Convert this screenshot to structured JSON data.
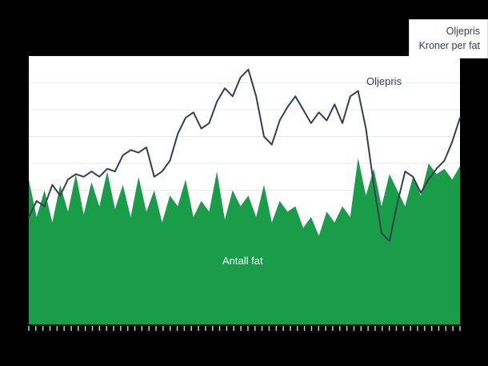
{
  "background_color": "#000000",
  "legend": {
    "title": "Oljepris",
    "subtitle": "Kroner per fat"
  },
  "annotations": {
    "line_label": "Oljepris",
    "area_label": "Antall fat"
  },
  "colors": {
    "plot_bg": "#ffffff",
    "grid": "#e9e9e9",
    "tick": "#c8c8c8",
    "line": "#33414e",
    "area": "#1a9d49"
  },
  "chart_data": {
    "type": "area",
    "title": "",
    "xlabel": "",
    "ylabel": "",
    "x_axis": "time, unlabeled dense tick marks (one per period)",
    "ylim": [
      0,
      100
    ],
    "grid": "horizontal, every 10 units",
    "legend_position": "top-right, outside plot",
    "series": [
      {
        "name": "Oljepris",
        "style": "line",
        "color": "#33414e",
        "values": [
          40,
          46,
          44,
          52,
          48,
          54,
          56,
          55,
          57,
          55,
          58,
          57,
          63,
          65,
          64,
          66,
          55,
          57,
          61,
          71,
          77,
          79,
          73,
          75,
          83,
          88,
          85,
          92,
          95,
          85,
          70,
          67,
          76,
          81,
          85,
          80,
          75,
          79,
          76,
          82,
          75,
          85,
          87,
          73,
          52,
          34,
          31,
          45,
          57,
          55,
          49,
          54,
          58,
          61,
          68,
          77
        ]
      },
      {
        "name": "Antall fat",
        "style": "area",
        "color": "#1a9d49",
        "values": [
          54,
          40,
          50,
          38,
          52,
          42,
          56,
          41,
          53,
          44,
          57,
          43,
          52,
          40,
          55,
          42,
          50,
          38,
          48,
          44,
          54,
          40,
          46,
          42,
          57,
          39,
          50,
          44,
          48,
          40,
          52,
          38,
          46,
          42,
          44,
          36,
          40,
          33,
          42,
          38,
          44,
          40,
          62,
          48,
          58,
          44,
          56,
          50,
          44,
          55,
          48,
          60,
          56,
          58,
          54,
          59
        ]
      }
    ]
  }
}
